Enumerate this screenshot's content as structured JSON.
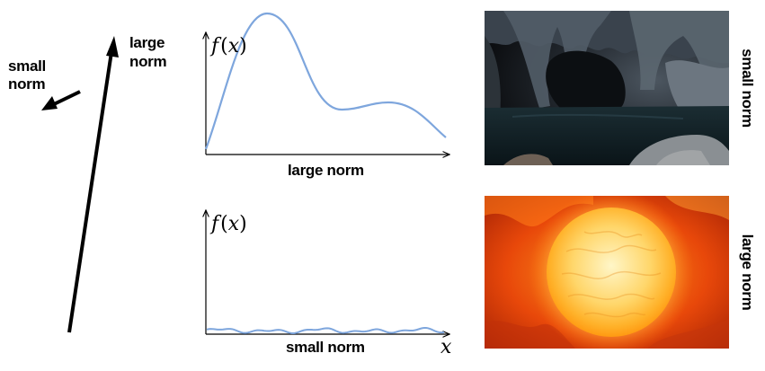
{
  "vectors": {
    "small_label_line1": "small",
    "small_label_line2": "norm",
    "large_label_line1": "large",
    "large_label_line2": "norm"
  },
  "top_plot": {
    "f_symbol": "f",
    "f_open_paren": "(",
    "f_var": "x",
    "f_close_paren": ")",
    "caption": "large norm",
    "curve_color": "#7ea6dd"
  },
  "bottom_plot": {
    "f_symbol": "f",
    "f_open_paren": "(",
    "f_var": "x",
    "f_close_paren": ")",
    "caption": "small norm",
    "x_symbol": "x",
    "curve_color": "#7ea6dd"
  },
  "images": {
    "cave_caption": "small norm",
    "sun_caption": "large norm"
  }
}
